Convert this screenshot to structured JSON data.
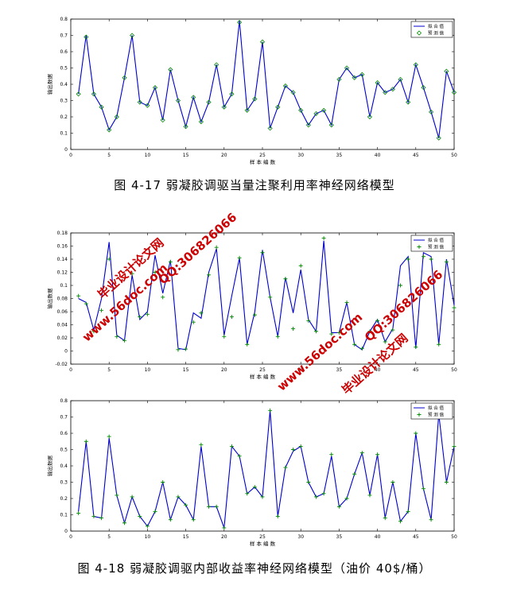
{
  "captions": {
    "top": "图 4-17 弱凝胶调驱当量注聚利用率神经网络模型",
    "bottom": "图 4-18 弱凝胶调驱内部收益率神经网络模型（油价 40$/桶）"
  },
  "watermarks": [
    "毕业设计论文网",
    "www.56doc.com",
    "QQ:306826066",
    "www.56doc.com",
    "QQ:306826066",
    "毕业设计论文网"
  ],
  "chart_data": [
    {
      "type": "line",
      "xlabel": "样 本 编 数",
      "ylabel": "输出数据",
      "xlim": [
        0,
        50
      ],
      "ylim": [
        0,
        0.8
      ],
      "xticks": [
        0,
        5,
        10,
        15,
        20,
        25,
        30,
        35,
        40,
        45,
        50
      ],
      "yticks": [
        0,
        0.1,
        0.2,
        0.3,
        0.4,
        0.5,
        0.6,
        0.7,
        0.8
      ],
      "yticklabels": [
        "0",
        "0.1",
        "0.2",
        "0.3",
        "0.4",
        "0.5",
        "0.6",
        "0.7",
        "0.8"
      ],
      "legend": {
        "placement": "top-right",
        "entries": [
          "拟 合 值",
          "预 测 值"
        ],
        "marker": "diamond"
      },
      "series": [
        {
          "name": "拟 合 值",
          "style": "line",
          "x": [
            1,
            2,
            3,
            4,
            5,
            6,
            7,
            8,
            9,
            10,
            11,
            12,
            13,
            14,
            15,
            16,
            17,
            18,
            19,
            20,
            21,
            22,
            23,
            24,
            25,
            26,
            27,
            28,
            29,
            30,
            31,
            32,
            33,
            34,
            35,
            36,
            37,
            38,
            39,
            40,
            41,
            42,
            43,
            44,
            45,
            46,
            47,
            48,
            49,
            50
          ],
          "values": [
            0.34,
            0.7,
            0.34,
            0.26,
            0.12,
            0.2,
            0.44,
            0.7,
            0.29,
            0.27,
            0.38,
            0.18,
            0.49,
            0.3,
            0.14,
            0.32,
            0.17,
            0.29,
            0.52,
            0.26,
            0.34,
            0.79,
            0.24,
            0.31,
            0.66,
            0.13,
            0.26,
            0.39,
            0.35,
            0.24,
            0.15,
            0.22,
            0.24,
            0.15,
            0.43,
            0.5,
            0.44,
            0.46,
            0.2,
            0.41,
            0.35,
            0.37,
            0.43,
            0.29,
            0.52,
            0.38,
            0.23,
            0.07,
            0.48,
            0.35
          ]
        },
        {
          "name": "预 测 值",
          "style": "marker",
          "x": [
            1,
            2,
            3,
            4,
            5,
            6,
            7,
            8,
            9,
            10,
            11,
            12,
            13,
            14,
            15,
            16,
            17,
            18,
            19,
            20,
            21,
            22,
            23,
            24,
            25,
            26,
            27,
            28,
            29,
            30,
            31,
            32,
            33,
            34,
            35,
            36,
            37,
            38,
            39,
            40,
            41,
            42,
            43,
            44,
            45,
            46,
            47,
            48,
            49,
            50
          ],
          "values": [
            0.34,
            0.69,
            0.34,
            0.26,
            0.12,
            0.2,
            0.44,
            0.7,
            0.29,
            0.27,
            0.38,
            0.18,
            0.49,
            0.3,
            0.14,
            0.32,
            0.17,
            0.29,
            0.52,
            0.26,
            0.34,
            0.78,
            0.24,
            0.31,
            0.66,
            0.13,
            0.26,
            0.39,
            0.35,
            0.24,
            0.15,
            0.22,
            0.24,
            0.15,
            0.43,
            0.5,
            0.44,
            0.46,
            0.2,
            0.41,
            0.35,
            0.37,
            0.43,
            0.29,
            0.52,
            0.38,
            0.23,
            0.07,
            0.48,
            0.35
          ]
        }
      ]
    },
    {
      "type": "line",
      "xlabel": "样 本 编 数",
      "ylabel": "输出数据",
      "xlim": [
        0,
        50
      ],
      "ylim": [
        -0.02,
        0.18
      ],
      "xticks": [
        0,
        5,
        10,
        15,
        20,
        25,
        30,
        35,
        40,
        45,
        50
      ],
      "yticks": [
        -0.02,
        0,
        0.02,
        0.04,
        0.06,
        0.08,
        0.1,
        0.12,
        0.14,
        0.16,
        0.18
      ],
      "yticklabels": [
        "-0.02",
        "0",
        "0.02",
        "0.04",
        "0.06",
        "0.08",
        "0.1",
        "0.12",
        "0.14",
        "0.16",
        "0.18"
      ],
      "legend": {
        "placement": "top-right",
        "entries": [
          "拟 合 值",
          "预 测 值"
        ],
        "marker": "plus"
      },
      "series": [
        {
          "name": "拟 合 值",
          "style": "line",
          "x": [
            1,
            2,
            3,
            4,
            5,
            6,
            7,
            8,
            9,
            10,
            11,
            12,
            13,
            14,
            15,
            16,
            17,
            18,
            19,
            20,
            21,
            22,
            23,
            24,
            25,
            26,
            27,
            28,
            29,
            30,
            31,
            32,
            33,
            34,
            35,
            36,
            37,
            38,
            39,
            40,
            41,
            42,
            43,
            44,
            45,
            46,
            47,
            48,
            49,
            50
          ],
          "values": [
            0.08,
            0.074,
            0.032,
            0.08,
            0.166,
            0.024,
            0.016,
            0.116,
            0.048,
            0.06,
            0.146,
            0.088,
            0.138,
            0.004,
            0.002,
            0.058,
            0.05,
            0.12,
            0.156,
            0.024,
            0.084,
            0.142,
            0.01,
            0.06,
            0.154,
            0.082,
            0.022,
            0.112,
            0.058,
            0.124,
            0.048,
            0.03,
            0.168,
            0.028,
            0.028,
            0.074,
            0.01,
            0.002,
            0.03,
            0.048,
            0.014,
            0.034,
            0.13,
            0.144,
            0.004,
            0.15,
            0.144,
            0.01,
            0.14,
            0.07
          ]
        },
        {
          "name": "预 测 值",
          "style": "marker",
          "x": [
            1,
            2,
            3,
            4,
            5,
            6,
            7,
            8,
            9,
            10,
            11,
            12,
            13,
            14,
            15,
            16,
            17,
            18,
            19,
            20,
            21,
            22,
            23,
            24,
            25,
            26,
            27,
            28,
            29,
            30,
            31,
            32,
            33,
            34,
            35,
            36,
            37,
            38,
            39,
            40,
            41,
            42,
            43,
            44,
            45,
            46,
            47,
            48,
            49,
            50
          ],
          "values": [
            0.084,
            0.072,
            0.03,
            0.062,
            0.14,
            0.022,
            0.016,
            0.118,
            0.052,
            0.056,
            0.12,
            0.082,
            0.136,
            0.002,
            0.003,
            0.044,
            0.058,
            0.116,
            0.158,
            0.022,
            0.052,
            0.142,
            0.01,
            0.055,
            0.15,
            0.082,
            0.022,
            0.11,
            0.034,
            0.13,
            0.046,
            0.03,
            0.172,
            0.026,
            0.028,
            0.074,
            0.01,
            0.004,
            0.03,
            0.046,
            0.014,
            0.032,
            0.1,
            0.14,
            0.006,
            0.144,
            0.14,
            0.01,
            0.136,
            0.066
          ]
        }
      ]
    },
    {
      "type": "line",
      "xlabel": "样 本 编 数",
      "ylabel": "输出数据",
      "xlim": [
        0,
        50
      ],
      "ylim": [
        0,
        0.8
      ],
      "xticks": [
        0,
        5,
        10,
        15,
        20,
        25,
        30,
        35,
        40,
        45,
        50
      ],
      "yticks": [
        0,
        0.1,
        0.2,
        0.3,
        0.4,
        0.5,
        0.6,
        0.7,
        0.8
      ],
      "yticklabels": [
        "0",
        "0.1",
        "0.2",
        "0.3",
        "0.4",
        "0.5",
        "0.6",
        "0.7",
        "0.8"
      ],
      "legend": {
        "placement": "top-right",
        "entries": [
          "拟 合 值",
          "预 测 值"
        ],
        "marker": "plus"
      },
      "series": [
        {
          "name": "拟 合 值",
          "style": "line",
          "x": [
            1,
            2,
            3,
            4,
            5,
            6,
            7,
            8,
            9,
            10,
            11,
            12,
            13,
            14,
            15,
            16,
            17,
            18,
            19,
            20,
            21,
            22,
            23,
            24,
            25,
            26,
            27,
            28,
            29,
            30,
            31,
            32,
            33,
            34,
            35,
            36,
            37,
            38,
            39,
            40,
            41,
            42,
            43,
            44,
            45,
            46,
            47,
            48,
            49,
            50
          ],
          "values": [
            0.12,
            0.55,
            0.09,
            0.08,
            0.57,
            0.22,
            0.05,
            0.21,
            0.09,
            0.03,
            0.12,
            0.3,
            0.07,
            0.21,
            0.16,
            0.07,
            0.52,
            0.15,
            0.15,
            0.02,
            0.52,
            0.46,
            0.23,
            0.27,
            0.21,
            0.74,
            0.09,
            0.39,
            0.49,
            0.52,
            0.3,
            0.21,
            0.23,
            0.46,
            0.15,
            0.2,
            0.35,
            0.48,
            0.22,
            0.47,
            0.08,
            0.3,
            0.06,
            0.12,
            0.6,
            0.26,
            0.07,
            0.72,
            0.3,
            0.52
          ]
        },
        {
          "name": "预 测 值",
          "style": "marker",
          "x": [
            1,
            2,
            3,
            4,
            5,
            6,
            7,
            8,
            9,
            10,
            11,
            12,
            13,
            14,
            15,
            16,
            17,
            18,
            19,
            20,
            21,
            22,
            23,
            24,
            25,
            26,
            27,
            28,
            29,
            30,
            31,
            32,
            33,
            34,
            35,
            36,
            37,
            38,
            39,
            40,
            41,
            42,
            43,
            44,
            45,
            46,
            47,
            48,
            49,
            50
          ],
          "values": [
            0.11,
            0.55,
            0.09,
            0.08,
            0.58,
            0.22,
            0.05,
            0.21,
            0.09,
            0.03,
            0.12,
            0.3,
            0.07,
            0.21,
            0.16,
            0.07,
            0.53,
            0.15,
            0.15,
            0.02,
            0.52,
            0.46,
            0.23,
            0.27,
            0.21,
            0.74,
            0.09,
            0.39,
            0.5,
            0.52,
            0.3,
            0.21,
            0.23,
            0.47,
            0.15,
            0.2,
            0.35,
            0.48,
            0.22,
            0.47,
            0.08,
            0.3,
            0.06,
            0.12,
            0.6,
            0.26,
            0.07,
            0.72,
            0.3,
            0.52
          ]
        }
      ]
    }
  ]
}
